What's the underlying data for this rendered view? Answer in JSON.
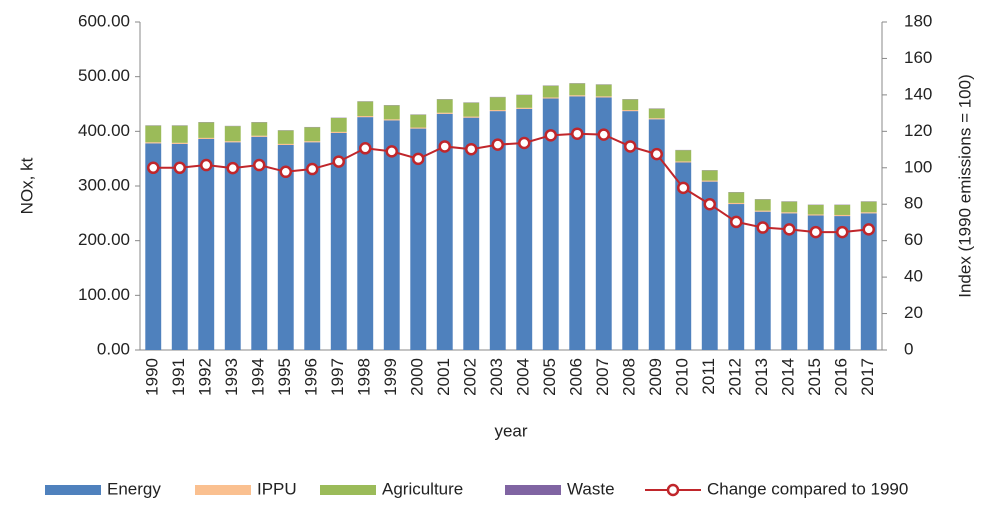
{
  "chart_data": {
    "type": "bar",
    "xlabel": "year",
    "ylabel": "NOx, kt",
    "y2label": "Index (1990 emissions = 100)",
    "categories": [
      "1990",
      "1991",
      "1992",
      "1993",
      "1994",
      "1995",
      "1996",
      "1997",
      "1998",
      "1999",
      "2000",
      "2001",
      "2002",
      "2003",
      "2004",
      "2005",
      "2006",
      "2007",
      "2008",
      "2009",
      "2010",
      "2011",
      "2012",
      "2013",
      "2014",
      "2015",
      "2016",
      "2017"
    ],
    "series": [
      {
        "name": "Energy",
        "color": "#4f81bd",
        "type": "bar",
        "values": [
          378,
          377,
          386,
          380,
          390,
          375,
          380,
          397,
          426,
          420,
          405,
          432,
          425,
          437,
          441,
          460,
          464,
          462,
          437,
          422,
          343,
          308,
          267,
          253,
          250,
          246,
          245,
          250
        ]
      },
      {
        "name": "IPPU",
        "color": "#fac090",
        "type": "bar",
        "values": [
          2,
          2,
          2,
          2,
          2,
          2,
          2,
          2,
          2,
          2,
          2,
          2,
          2,
          2,
          2,
          2,
          2,
          2,
          2,
          2,
          2,
          2,
          2,
          2,
          2,
          2,
          2,
          2
        ]
      },
      {
        "name": "Agriculture",
        "color": "#9bbb59",
        "type": "bar",
        "values": [
          30.5,
          31.5,
          28.5,
          27.5,
          24.5,
          24.5,
          25.5,
          25.5,
          26.5,
          25.5,
          23.5,
          24.5,
          25.5,
          23.5,
          23.5,
          21.5,
          21.5,
          21.5,
          19.5,
          17.5,
          20.5,
          18.5,
          19.5,
          20.5,
          19.5,
          17.5,
          18.5,
          19.5
        ]
      },
      {
        "name": "Waste",
        "color": "#8064a2",
        "type": "bar",
        "values": [
          0.5,
          0.5,
          0.5,
          0.5,
          0.5,
          0.5,
          0.5,
          0.5,
          0.5,
          0.5,
          0.5,
          0.5,
          0.5,
          0.5,
          0.5,
          0.5,
          0.5,
          0.5,
          0.5,
          0.5,
          0.5,
          0.5,
          0.5,
          0.5,
          0.5,
          0.5,
          0.5,
          0.5
        ]
      },
      {
        "name": "Change compared to 1990",
        "color": "#c0262b",
        "type": "line",
        "axis": "y2",
        "values": [
          100,
          100,
          101.5,
          99.8,
          101.5,
          97.8,
          99.3,
          103.4,
          110.7,
          109,
          104.9,
          111.7,
          110.2,
          112.7,
          113.6,
          117.8,
          118.7,
          118.2,
          111.7,
          107.5,
          89,
          80,
          70.3,
          67.2,
          66.2,
          64.7,
          64.7,
          66.2
        ]
      }
    ],
    "ylim": [
      0,
      600
    ],
    "yticks": [
      {
        "value": 0,
        "label": "0.00"
      },
      {
        "value": 100,
        "label": "100.00"
      },
      {
        "value": 200,
        "label": "200.00"
      },
      {
        "value": 300,
        "label": "300.00"
      },
      {
        "value": 400,
        "label": "400.00"
      },
      {
        "value": 500,
        "label": "500.00"
      },
      {
        "value": 600,
        "label": "600.00"
      }
    ],
    "y2lim": [
      0,
      180
    ],
    "y2ticks": [
      0,
      20,
      40,
      60,
      80,
      100,
      120,
      140,
      160,
      180
    ],
    "legend": "bottom"
  }
}
